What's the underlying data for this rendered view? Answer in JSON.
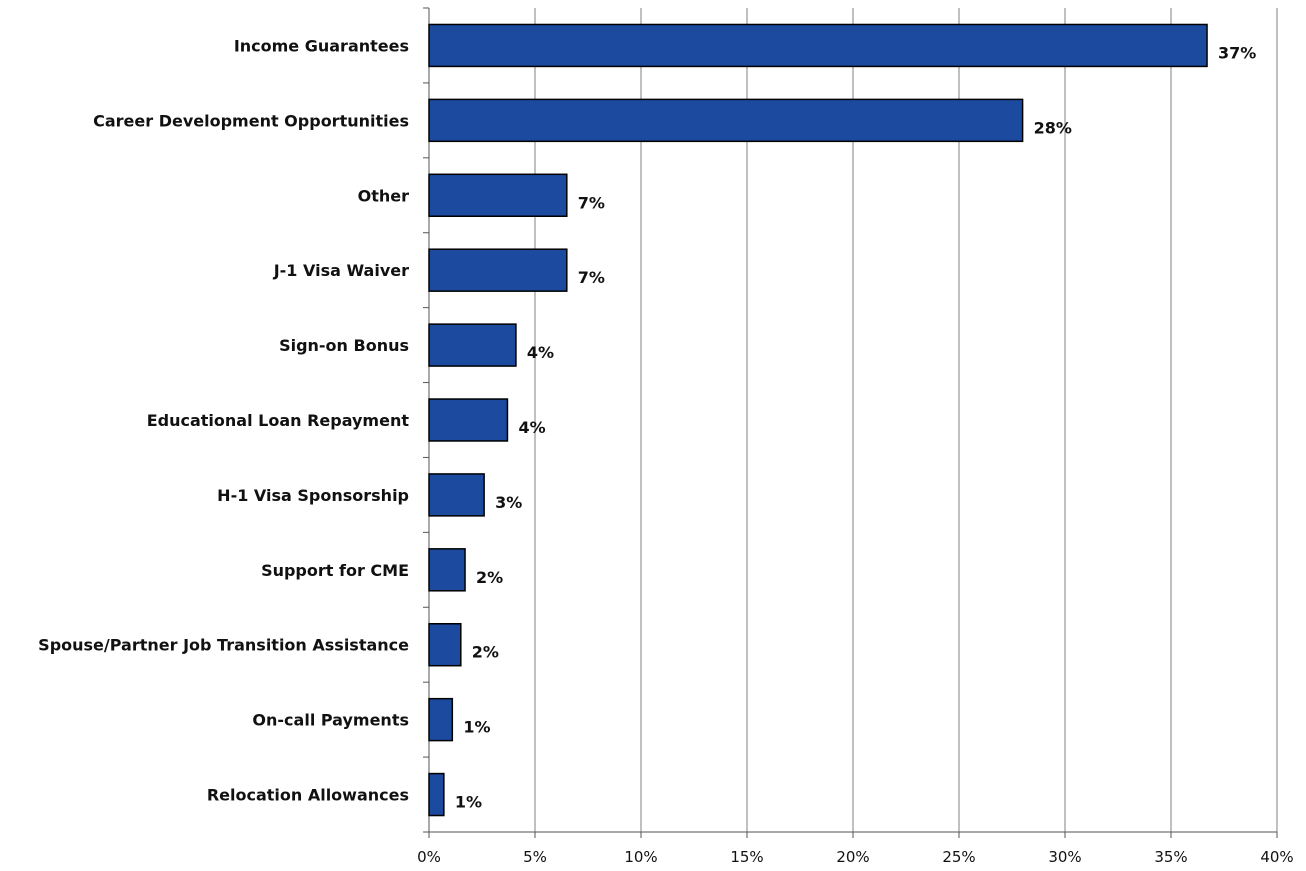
{
  "chart_data": {
    "type": "bar",
    "orientation": "horizontal",
    "categories": [
      "Income Guarantees",
      "Career Development Opportunities",
      "Other",
      "J-1 Visa Waiver",
      "Sign-on Bonus",
      "Educational Loan Repayment",
      "H-1 Visa Sponsorship",
      "Support for CME",
      "Spouse/Partner Job Transition Assistance",
      "On-call Payments",
      "Relocation Allowances"
    ],
    "values": [
      36.7,
      28.0,
      6.5,
      6.5,
      4.1,
      3.7,
      2.6,
      1.7,
      1.5,
      1.1,
      0.7
    ],
    "value_labels": [
      "37%",
      "28%",
      "7%",
      "7%",
      "4%",
      "4%",
      "3%",
      "2%",
      "2%",
      "1%",
      "1%"
    ],
    "xlim": [
      0,
      40
    ],
    "x_ticks": [
      0,
      5,
      10,
      15,
      20,
      25,
      30,
      35,
      40
    ],
    "x_tick_labels": [
      "0%",
      "5%",
      "10%",
      "15%",
      "20%",
      "25%",
      "30%",
      "35%",
      "40%"
    ],
    "grid": "vertical",
    "legend": "none",
    "title": "",
    "xlabel": "",
    "ylabel": "",
    "bar_color": "#1c4a9e"
  }
}
